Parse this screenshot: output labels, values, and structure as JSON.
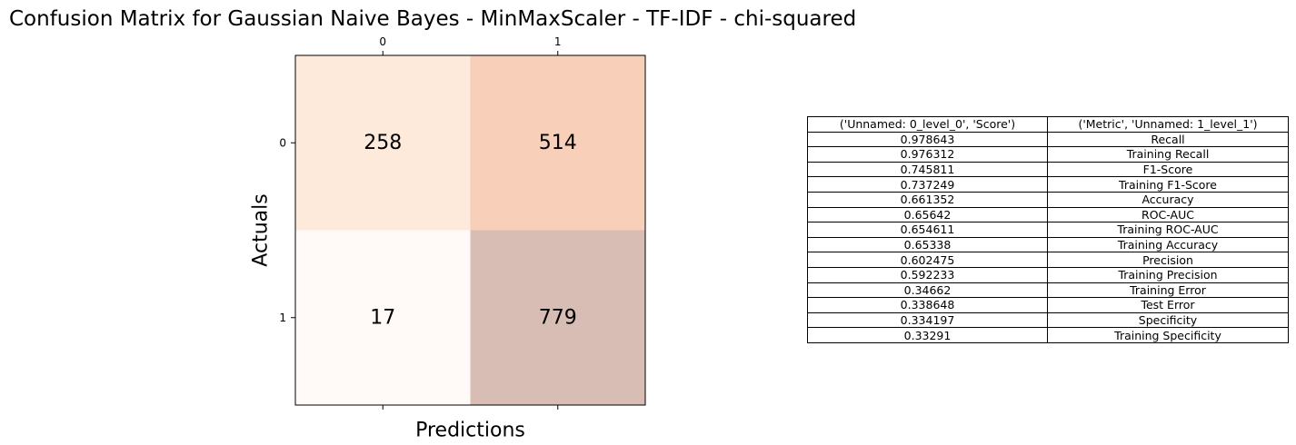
{
  "chart_data": [
    {
      "type": "heatmap",
      "title": "Confusion Matrix for Gaussian Naive Bayes - MinMaxScaler - TF-IDF - chi-squared",
      "xlabel": "Predictions",
      "ylabel": "Actuals",
      "x_categories": [
        "0",
        "1"
      ],
      "y_categories": [
        "0",
        "1"
      ],
      "values": [
        [
          258,
          514
        ],
        [
          17,
          779
        ]
      ],
      "cell_labels": [
        [
          "258",
          "514"
        ],
        [
          "17",
          "779"
        ]
      ],
      "cell_colors": [
        [
          "#feeadb",
          "#f8cfb8"
        ],
        [
          "#fffaf7",
          "#d8bdb5"
        ]
      ],
      "xaxis_position": "top-and-bottom"
    },
    {
      "type": "table",
      "columns": [
        "('Unnamed: 0_level_0', 'Score')",
        "('Metric', 'Unnamed: 1_level_1')"
      ],
      "rows": [
        [
          "0.978643",
          "Recall"
        ],
        [
          "0.976312",
          "Training Recall"
        ],
        [
          "0.745811",
          "F1-Score"
        ],
        [
          "0.737249",
          "Training F1-Score"
        ],
        [
          "0.661352",
          "Accuracy"
        ],
        [
          "0.65642",
          "ROC-AUC"
        ],
        [
          "0.654611",
          "Training ROC-AUC"
        ],
        [
          "0.65338",
          "Training Accuracy"
        ],
        [
          "0.602475",
          "Precision"
        ],
        [
          "0.592233",
          "Training Precision"
        ],
        [
          "0.34662",
          "Training Error"
        ],
        [
          "0.338648",
          "Test Error"
        ],
        [
          "0.334197",
          "Specificity"
        ],
        [
          "0.33291",
          "Training Specificity"
        ]
      ]
    }
  ]
}
